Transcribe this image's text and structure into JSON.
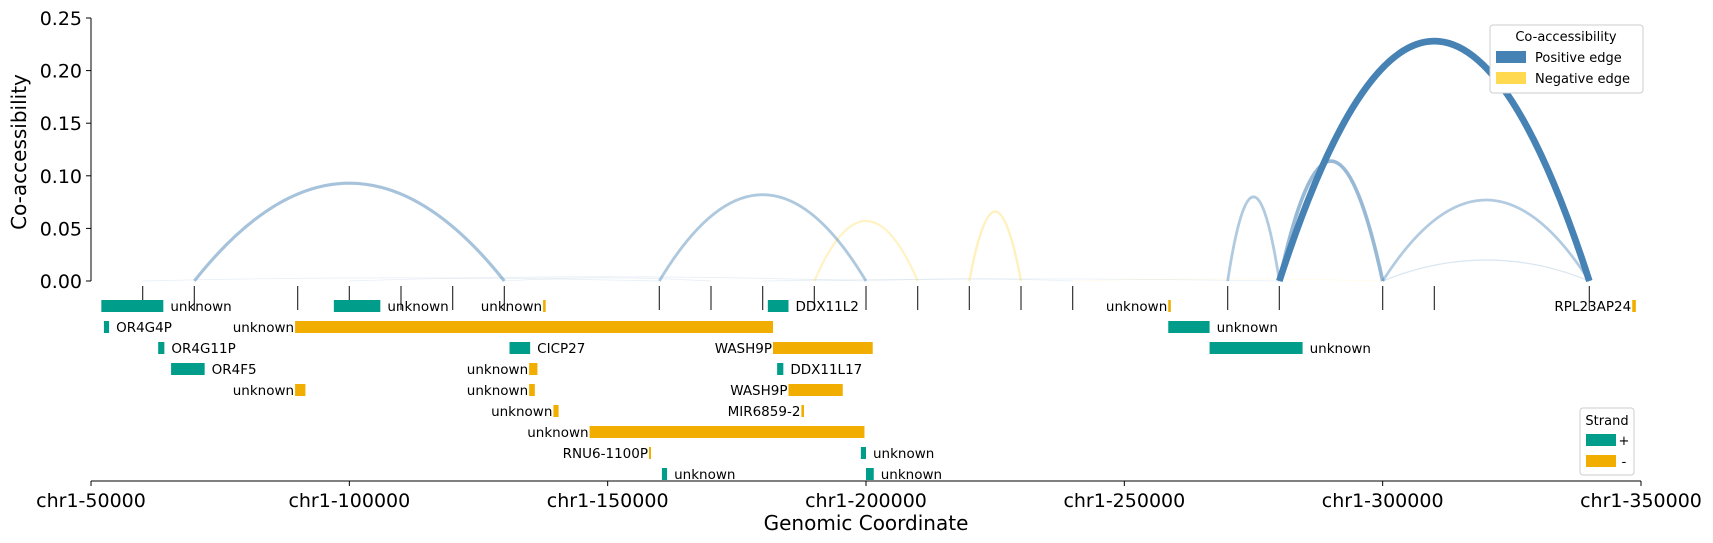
{
  "chart_data": {
    "type": "arc",
    "ylabel": "Co-accessibility",
    "xlabel": "Genomic Coordinate",
    "ylim": [
      0,
      0.25
    ],
    "xlim": [
      50000,
      350000
    ],
    "y_ticks": [
      "0.00",
      "0.05",
      "0.10",
      "0.15",
      "0.20",
      "0.25"
    ],
    "x_ticks": [
      {
        "value": 50000,
        "label": "chr1-50000"
      },
      {
        "value": 100000,
        "label": "chr1-100000"
      },
      {
        "value": 150000,
        "label": "chr1-150000"
      },
      {
        "value": 200000,
        "label": "chr1-200000"
      },
      {
        "value": 250000,
        "label": "chr1-250000"
      },
      {
        "value": 300000,
        "label": "chr1-300000"
      },
      {
        "value": 350000,
        "label": "chr1-350000"
      }
    ],
    "peaks": [
      60000,
      70000,
      90000,
      100000,
      110000,
      120000,
      130000,
      160000,
      170000,
      180000,
      190000,
      200000,
      210000,
      220000,
      230000,
      240000,
      270000,
      280000,
      300000,
      310000,
      340000
    ],
    "links": [
      {
        "start": 70000,
        "end": 130000,
        "score": 0.093
      },
      {
        "start": 160000,
        "end": 200000,
        "score": 0.082
      },
      {
        "start": 190000,
        "end": 210000,
        "score": -0.057
      },
      {
        "start": 220000,
        "end": 230000,
        "score": -0.066
      },
      {
        "start": 270000,
        "end": 280000,
        "score": 0.08
      },
      {
        "start": 280000,
        "end": 300000,
        "score": 0.114
      },
      {
        "start": 280000,
        "end": 340000,
        "score": 0.228
      },
      {
        "start": 300000,
        "end": 340000,
        "score": 0.077
      },
      {
        "start": 60000,
        "end": 160000,
        "score": 0.003
      },
      {
        "start": 100000,
        "end": 200000,
        "score": 0.004
      },
      {
        "start": 130000,
        "end": 170000,
        "score": 0.003
      },
      {
        "start": 200000,
        "end": 240000,
        "score": 0.002
      },
      {
        "start": 180000,
        "end": 280000,
        "score": 0.002
      },
      {
        "start": 240000,
        "end": 300000,
        "score": -0.002
      },
      {
        "start": 300000,
        "end": 340000,
        "score": 0.02
      }
    ],
    "genes": [
      {
        "name": "unknown",
        "start": 52000,
        "end": 64000,
        "strand": "+",
        "row": 0
      },
      {
        "name": "unknown",
        "start": 97000,
        "end": 106000,
        "strand": "+",
        "row": 0
      },
      {
        "name": "unknown",
        "start": 137500,
        "end": 138000,
        "strand": "-",
        "row": 0
      },
      {
        "name": "DDX11L2",
        "start": 181000,
        "end": 185000,
        "strand": "+",
        "row": 0
      },
      {
        "name": "unknown",
        "start": 258500,
        "end": 259000,
        "strand": "-",
        "row": 0
      },
      {
        "name": "RPL23AP24",
        "start": 348300,
        "end": 349000,
        "strand": "-",
        "row": 0
      },
      {
        "name": "OR4G4P",
        "start": 52500,
        "end": 53500,
        "strand": "+",
        "row": 1
      },
      {
        "name": "unknown",
        "start": 89500,
        "end": 182000,
        "strand": "-",
        "row": 1
      },
      {
        "name": "unknown",
        "start": 258500,
        "end": 266500,
        "strand": "+",
        "row": 1
      },
      {
        "name": "OR4G11P",
        "start": 63000,
        "end": 64200,
        "strand": "+",
        "row": 2
      },
      {
        "name": "CICP27",
        "start": 131000,
        "end": 135000,
        "strand": "+",
        "row": 2
      },
      {
        "name": "WASH9P",
        "start": 182000,
        "end": 201300,
        "strand": "-",
        "row": 2
      },
      {
        "name": "unknown",
        "start": 266500,
        "end": 284500,
        "strand": "+",
        "row": 2
      },
      {
        "name": "OR4F5",
        "start": 65500,
        "end": 72000,
        "strand": "+",
        "row": 3
      },
      {
        "name": "unknown",
        "start": 134800,
        "end": 136400,
        "strand": "-",
        "row": 3
      },
      {
        "name": "DDX11L17",
        "start": 182800,
        "end": 184000,
        "strand": "+",
        "row": 3
      },
      {
        "name": "unknown",
        "start": 89500,
        "end": 91500,
        "strand": "-",
        "row": 4
      },
      {
        "name": "unknown",
        "start": 134800,
        "end": 135900,
        "strand": "-",
        "row": 4
      },
      {
        "name": "WASH9P",
        "start": 185000,
        "end": 195500,
        "strand": "-",
        "row": 4
      },
      {
        "name": "unknown",
        "start": 139500,
        "end": 140500,
        "strand": "-",
        "row": 5
      },
      {
        "name": "MIR6859-2",
        "start": 187500,
        "end": 188000,
        "strand": "-",
        "row": 5
      },
      {
        "name": "unknown",
        "start": 146500,
        "end": 199700,
        "strand": "-",
        "row": 6
      },
      {
        "name": "RNU6-1100P",
        "start": 158000,
        "end": 158300,
        "strand": "-",
        "row": 7
      },
      {
        "name": "unknown",
        "start": 199000,
        "end": 200000,
        "strand": "+",
        "row": 7
      },
      {
        "name": "unknown",
        "start": 160500,
        "end": 161500,
        "strand": "+",
        "row": 8
      },
      {
        "name": "unknown",
        "start": 200000,
        "end": 201500,
        "strand": "+",
        "row": 8
      }
    ],
    "legend_coaccess": {
      "title": "Co-accessibility",
      "position": "top-right",
      "items": [
        {
          "label": "Positive edge",
          "color": "#4682B4"
        },
        {
          "label": "Negative edge",
          "color": "#FFD94F"
        }
      ]
    },
    "legend_strand": {
      "title": "Strand",
      "position": "bottom-right",
      "items": [
        {
          "label": "+",
          "color": "#009E8A"
        },
        {
          "label": "-",
          "color": "#F2AE00"
        }
      ]
    },
    "colors": {
      "positive": "#4682B4",
      "negative": "#FFD94F",
      "plus_strand": "#009E8A",
      "minus_strand": "#F2AE00"
    }
  }
}
